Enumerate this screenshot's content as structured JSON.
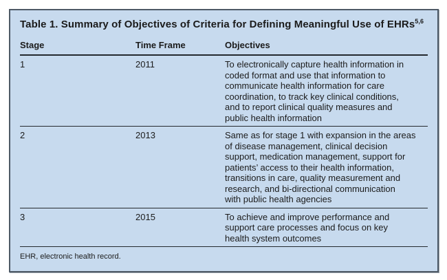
{
  "table": {
    "title": "Table 1. Summary of Objectives of Criteria for Defining Meaningful Use of EHRs",
    "title_superscript": "5,6",
    "columns": {
      "stage": "Stage",
      "time_frame": "Time Frame",
      "objectives": "Objectives"
    },
    "rows": [
      {
        "stage": "1",
        "time_frame": "2011",
        "objectives": "To electronically capture health information in\ncoded format and use that information to\ncommunicate health information for care\ncoordination, to track key clinical conditions,\nand to report clinical quality measures and\npublic health information"
      },
      {
        "stage": "2",
        "time_frame": "2013",
        "objectives": "Same as for stage 1 with expansion in the areas\nof disease management, clinical decision\nsupport, medication management, support for\npatients’ access to their health information,\ntransitions in care, quality measurement and\nresearch, and bi-directional communication\nwith public health agencies"
      },
      {
        "stage": "3",
        "time_frame": "2015",
        "objectives": "To achieve and improve performance and\nsupport care processes and focus on key\nhealth system outcomes"
      }
    ],
    "footnote": "EHR, electronic health record.",
    "colors": {
      "table_background": "#c7daee",
      "outer_border": "#4d5966",
      "rule": "#23282d",
      "text": "#1b1b1b"
    }
  }
}
